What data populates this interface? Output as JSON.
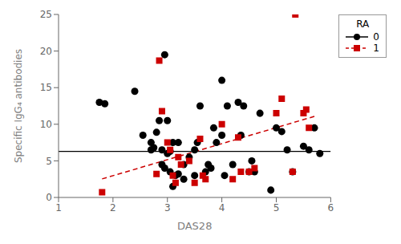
{
  "chart_data": {
    "type": "scatter",
    "xlabel": "DAS28",
    "ylabel": "Specific IgG₄ antibodies",
    "xlim": [
      1,
      6
    ],
    "ylim": [
      0,
      25
    ],
    "xticks": [
      1,
      2,
      3,
      4,
      5,
      6
    ],
    "yticks": [
      0,
      5,
      10,
      15,
      20,
      25
    ],
    "grid": false,
    "legend": "upper right",
    "legend_title": "RA",
    "series": [
      {
        "name": "0",
        "color": "#000000",
        "marker": "circle",
        "line_style": "solid",
        "x": [
          1.75,
          1.85,
          2.4,
          2.55,
          2.7,
          2.7,
          2.75,
          2.8,
          2.85,
          2.9,
          2.9,
          2.95,
          2.95,
          3.0,
          3.0,
          3.05,
          3.05,
          3.1,
          3.1,
          3.15,
          3.2,
          3.2,
          3.3,
          3.3,
          3.4,
          3.5,
          3.5,
          3.55,
          3.6,
          3.7,
          3.75,
          3.8,
          3.85,
          3.9,
          4.0,
          4.0,
          4.05,
          4.1,
          4.2,
          4.3,
          4.35,
          4.4,
          4.5,
          4.55,
          4.6,
          4.7,
          4.9,
          5.0,
          5.1,
          5.2,
          5.3,
          5.5,
          5.6,
          5.7,
          5.8
        ],
        "values": [
          13.0,
          12.8,
          14.5,
          8.5,
          7.5,
          6.5,
          6.8,
          8.9,
          10.5,
          6.5,
          4.5,
          4.0,
          19.5,
          10.5,
          6.0,
          6.3,
          3.5,
          1.5,
          7.5,
          3.0,
          3.2,
          7.5,
          4.5,
          2.5,
          5.5,
          3.0,
          6.5,
          7.5,
          12.5,
          3.5,
          4.5,
          4.0,
          9.5,
          7.5,
          8.5,
          16.0,
          3.0,
          12.5,
          4.5,
          13.0,
          8.5,
          12.5,
          3.5,
          5.0,
          3.5,
          11.5,
          1.0,
          9.5,
          9.0,
          6.5,
          3.5,
          7.0,
          6.5,
          9.5,
          6.0
        ],
        "hline": 6.3
      },
      {
        "name": "1",
        "color": "#cc0000",
        "marker": "square",
        "line_style": "dashed",
        "x": [
          1.8,
          2.8,
          2.85,
          2.9,
          3.0,
          3.05,
          3.1,
          3.15,
          3.2,
          3.25,
          3.4,
          3.5,
          3.6,
          3.65,
          3.7,
          4.0,
          4.2,
          4.3,
          4.35,
          4.5,
          4.6,
          5.0,
          5.1,
          5.3,
          5.35,
          5.5,
          5.55,
          5.6
        ],
        "values": [
          0.7,
          3.2,
          18.7,
          11.8,
          7.5,
          6.5,
          3.0,
          2.0,
          5.5,
          4.5,
          5.0,
          2.0,
          8.0,
          3.0,
          2.5,
          10.0,
          2.5,
          8.2,
          3.5,
          3.5,
          4.0,
          11.5,
          13.5,
          3.5,
          25.0,
          11.5,
          12.0,
          9.5
        ],
        "fit": {
          "x": [
            1.8,
            5.7
          ],
          "values": [
            2.5334,
            11.0734
          ]
        }
      }
    ]
  }
}
